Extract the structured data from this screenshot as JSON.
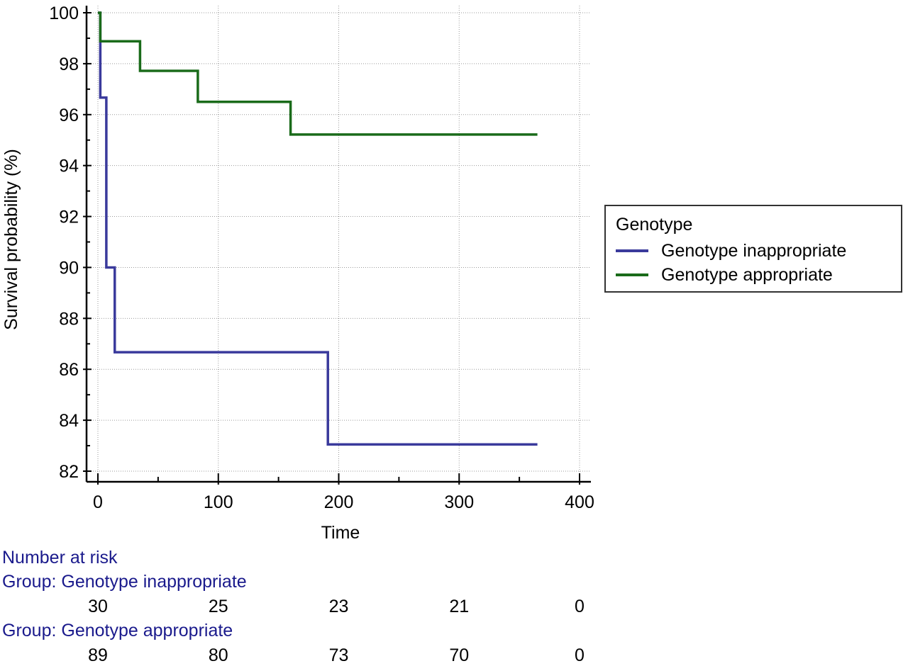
{
  "chart_data": {
    "type": "line",
    "subtype": "kaplan-meier step",
    "title": "",
    "xlabel": "Time",
    "ylabel": "Survival probability (%)",
    "xlim": [
      0,
      400
    ],
    "ylim": [
      82,
      100
    ],
    "x_ticks": [
      0,
      100,
      200,
      300,
      400
    ],
    "y_ticks": [
      82,
      84,
      86,
      88,
      90,
      92,
      94,
      96,
      98,
      100
    ],
    "grid": true,
    "legend": {
      "title": "Genotype",
      "placement": "right"
    },
    "series": [
      {
        "name": "Genotype inappropriate",
        "color": "#3a3a9c",
        "steps": [
          [
            0,
            100
          ],
          [
            2,
            96.67
          ],
          [
            7,
            90.0
          ],
          [
            14,
            86.67
          ],
          [
            191,
            83.05
          ],
          [
            365,
            83.05
          ]
        ]
      },
      {
        "name": "Genotype appropriate",
        "color": "#1a6b1a",
        "steps": [
          [
            0,
            100
          ],
          [
            2,
            98.88
          ],
          [
            35,
            97.72
          ],
          [
            83,
            96.5
          ],
          [
            160,
            95.22
          ],
          [
            365,
            95.22
          ]
        ]
      }
    ],
    "number_at_risk": {
      "heading": "Number at risk",
      "times": [
        0,
        100,
        200,
        300,
        400
      ],
      "groups": [
        {
          "label": "Group: Genotype inappropriate",
          "values": [
            30,
            25,
            23,
            21,
            0
          ]
        },
        {
          "label": "Group: Genotype appropriate",
          "values": [
            89,
            80,
            73,
            70,
            0
          ]
        }
      ]
    }
  }
}
